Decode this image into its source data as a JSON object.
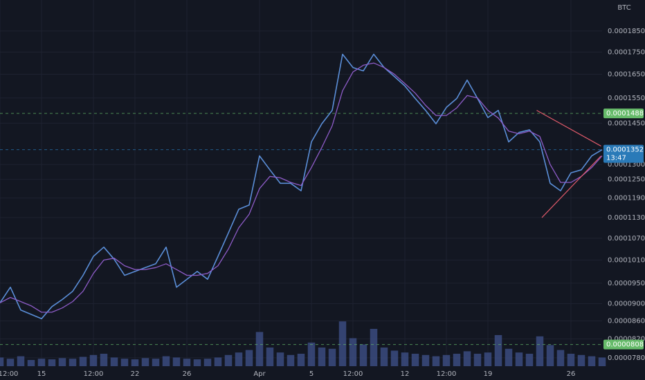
{
  "chart_data": {
    "type": "line",
    "currency_label": "BTC",
    "log_scale": true,
    "grid": true,
    "background": "#131722",
    "categories": [
      "12:00",
      null,
      null,
      null,
      "15",
      null,
      null,
      null,
      null,
      "12:00",
      null,
      null,
      null,
      "22",
      null,
      null,
      null,
      null,
      "26",
      null,
      null,
      null,
      null,
      null,
      null,
      "Apr",
      null,
      null,
      null,
      null,
      "5",
      null,
      null,
      null,
      "12:00",
      null,
      null,
      null,
      null,
      "12",
      null,
      null,
      null,
      "12:00",
      null,
      null,
      null,
      "19",
      null,
      null,
      null,
      null,
      null,
      null,
      null,
      "26",
      null,
      null,
      null
    ],
    "series": [
      {
        "color": "#5b8fd9",
        "values": [
          9.02e-05,
          9.4e-05,
          8.85e-05,
          8.75e-05,
          8.65e-05,
          8.93e-05,
          9.1e-05,
          9.3e-05,
          9.7e-05,
          0.000102,
          0.0001045,
          0.0001012,
          9.7e-05,
          9.8e-05,
          9.9e-05,
          0.0001,
          0.0001045,
          9.4e-05,
          9.6e-05,
          9.8e-05,
          9.6e-05,
          0.000102,
          0.0001085,
          0.0001155,
          0.0001168,
          0.000133,
          0.0001282,
          0.0001237,
          0.0001237,
          0.0001213,
          0.000138,
          0.0001448,
          0.00015,
          0.000174,
          0.000168,
          0.0001665,
          0.000174,
          0.000168,
          0.000164,
          0.00016,
          0.0001548,
          0.00015,
          0.0001448,
          0.0001512,
          0.0001548,
          0.0001625,
          0.0001548,
          0.0001472,
          0.00015,
          0.000138,
          0.0001415,
          0.0001425,
          0.000138,
          0.0001237,
          0.0001213,
          0.0001272,
          0.0001282,
          0.000133,
          0.0001352
        ]
      },
      {
        "color": "#8e5cc8",
        "values": [
          9.02e-05,
          9.15e-05,
          9.05e-05,
          8.95e-05,
          8.8e-05,
          8.8e-05,
          8.9e-05,
          9.05e-05,
          9.3e-05,
          9.75e-05,
          0.000101,
          0.0001015,
          9.95e-05,
          9.85e-05,
          9.85e-05,
          9.9e-05,
          0.0001,
          9.85e-05,
          9.7e-05,
          9.7e-05,
          9.75e-05,
          9.95e-05,
          0.000104,
          0.00011,
          0.000114,
          0.000122,
          0.000126,
          0.0001255,
          0.000124,
          0.000123,
          0.000129,
          0.000136,
          0.000144,
          0.000158,
          0.000166,
          0.000169,
          0.00017,
          0.000168,
          0.000165,
          0.000161,
          0.000157,
          0.000152,
          0.000148,
          0.000148,
          0.000151,
          0.000156,
          0.000155,
          0.00015,
          0.000147,
          0.000142,
          0.000141,
          0.000142,
          0.00014,
          0.00013,
          0.000124,
          0.000124,
          0.000126,
          0.000129,
          0.000133
        ]
      }
    ],
    "volume": {
      "color": "#3d4f86",
      "ylim": [
        0,
        100
      ],
      "values": [
        14,
        12,
        16,
        10,
        12,
        11,
        13,
        12,
        15,
        18,
        20,
        14,
        12,
        11,
        13,
        12,
        16,
        14,
        12,
        11,
        12,
        14,
        18,
        22,
        26,
        55,
        30,
        22,
        18,
        20,
        38,
        30,
        28,
        72,
        45,
        35,
        60,
        30,
        25,
        22,
        20,
        18,
        16,
        18,
        20,
        24,
        20,
        22,
        50,
        28,
        22,
        20,
        48,
        34,
        26,
        20,
        18,
        16,
        14
      ]
    },
    "ylim": [
      7.63e-05,
      0.0002008
    ],
    "yticks": [
      {
        "value": 0.000185,
        "label": "0.0001850"
      },
      {
        "value": 0.000175,
        "label": "0.0001750"
      },
      {
        "value": 0.000165,
        "label": "0.0001650"
      },
      {
        "value": 0.000155,
        "label": "0.0001550"
      },
      {
        "value": 0.000145,
        "label": "0.0001450"
      },
      {
        "value": 0.00013,
        "label": "0.0001300"
      },
      {
        "value": 0.000125,
        "label": "0.0001250"
      },
      {
        "value": 0.000119,
        "label": "0.0001190"
      },
      {
        "value": 0.000113,
        "label": "0.0001130"
      },
      {
        "value": 0.000107,
        "label": "0.0001070"
      },
      {
        "value": 0.000101,
        "label": "0.0001010"
      },
      {
        "value": 9.5e-05,
        "label": "0.0000950"
      },
      {
        "value": 9e-05,
        "label": "0.0000900"
      },
      {
        "value": 8.6e-05,
        "label": "0.0000860"
      },
      {
        "value": 8.2e-05,
        "label": "0.0000820"
      },
      {
        "value": 7.8e-05,
        "label": "0.0000780"
      }
    ],
    "price_lines": [
      {
        "value": 0.0001488,
        "label": "0.0001488",
        "color": "#66bb6a"
      },
      {
        "value": 0.0001352,
        "label": "0.0001352",
        "countdown": "13:47",
        "color": "#2a7ab8"
      },
      {
        "value": 8.08e-05,
        "label": "0.0000808",
        "color": "#66bb6a"
      }
    ],
    "trendlines": [
      {
        "color": "#e05a6a",
        "x": [
          51.7,
          57.9
        ],
        "y": [
          0.00015,
          0.0001365
        ]
      },
      {
        "color": "#e05a6a",
        "x": [
          52.2,
          57.9
        ],
        "y": [
          0.000113,
          0.000133
        ]
      }
    ]
  }
}
